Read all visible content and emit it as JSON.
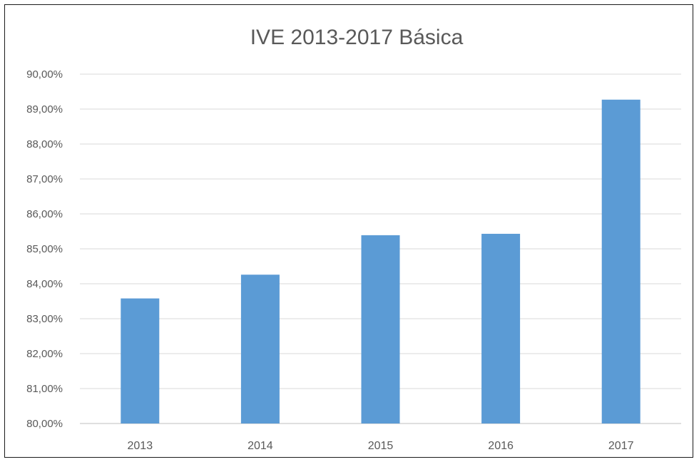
{
  "chart_data": {
    "type": "bar",
    "title": "IVE 2013-2017 Básica",
    "xlabel": "",
    "ylabel": "",
    "categories": [
      "2013",
      "2014",
      "2015",
      "2016",
      "2017"
    ],
    "values": [
      83.58,
      84.26,
      85.39,
      85.43,
      89.27
    ],
    "ylim": [
      80,
      90
    ],
    "yticks": [
      80,
      81,
      82,
      83,
      84,
      85,
      86,
      87,
      88,
      89,
      90
    ],
    "ytick_labels": [
      "80,00%",
      "81,00%",
      "82,00%",
      "83,00%",
      "84,00%",
      "85,00%",
      "86,00%",
      "87,00%",
      "88,00%",
      "89,00%",
      "90,00%"
    ],
    "grid": true,
    "legend": "none",
    "bar_color": "#5b9bd5"
  }
}
